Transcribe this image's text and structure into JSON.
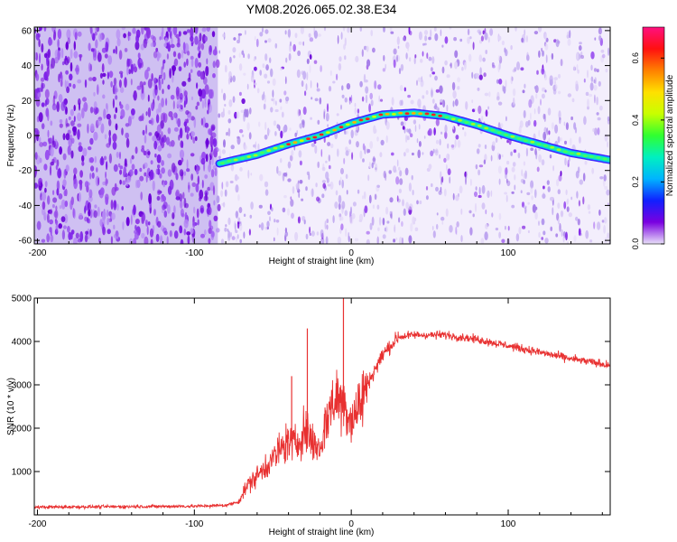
{
  "title": "YM08.2026.065.02.38.E34",
  "chart_data": [
    {
      "type": "heatmap",
      "title": "YM08.2026.065.02.38.E34",
      "xlabel": "Height of straight line (km)",
      "ylabel": "Frequency (Hz)",
      "xlim": [
        -202,
        165
      ],
      "ylim": [
        -62,
        62
      ],
      "x_ticks": [
        -200,
        -100,
        0,
        100
      ],
      "x_tick_labels": [
        "-200",
        "-100",
        "0",
        "100"
      ],
      "y_ticks": [
        -60,
        -40,
        -20,
        0,
        20,
        40,
        60
      ],
      "y_tick_labels": [
        "-60",
        "-40",
        "-20",
        "0",
        "20",
        "40",
        "60"
      ],
      "noise_transition_x": -85,
      "ridge": {
        "x": [
          -84,
          -60,
          -40,
          -20,
          0,
          20,
          40,
          60,
          80,
          100,
          120,
          140,
          165
        ],
        "y": [
          -16,
          -11,
          -5,
          0,
          7,
          12,
          13,
          11,
          6,
          0,
          -5,
          -10,
          -14
        ]
      },
      "colorbar": {
        "label": "Normalized spectral amplitude",
        "range": [
          0,
          0.7
        ],
        "ticks": [
          0.0,
          0.2,
          0.4,
          0.6
        ],
        "tick_labels": [
          "0.0",
          "0.2",
          "0.4",
          "0.6"
        ],
        "colors": [
          "#e8e0f8",
          "#7a00e0",
          "#1020ff",
          "#00b4ff",
          "#00f0c0",
          "#30ff30",
          "#c8ff00",
          "#ffe000",
          "#ff8000",
          "#ff1010",
          "#ff1080"
        ]
      }
    },
    {
      "type": "line",
      "xlabel": "Height of straight line (km)",
      "ylabel": "SNR (10 * v/v)",
      "xlim": [
        -202,
        165
      ],
      "ylim": [
        0,
        5000
      ],
      "x_ticks": [
        -200,
        -100,
        0,
        100
      ],
      "x_tick_labels": [
        "-200",
        "-100",
        "0",
        "100"
      ],
      "y_ticks": [
        1000,
        2000,
        3000,
        4000,
        5000
      ],
      "y_tick_labels": [
        "1000",
        "2000",
        "3000",
        "4000",
        "5000"
      ],
      "series": [
        {
          "name": "SNR",
          "color": "#e83030",
          "x": [
            -202,
            -150,
            -100,
            -80,
            -72,
            -66,
            -60,
            -55,
            -50,
            -45,
            -40,
            -35,
            -30,
            -25,
            -20,
            -15,
            -10,
            -5,
            0,
            5,
            10,
            20,
            30,
            40,
            60,
            80,
            100,
            120,
            140,
            165
          ],
          "y": [
            180,
            190,
            200,
            220,
            300,
            700,
            900,
            1100,
            1300,
            1500,
            1700,
            1600,
            2000,
            1700,
            1500,
            2300,
            2700,
            2600,
            2200,
            2500,
            3000,
            3700,
            4100,
            4150,
            4150,
            4050,
            3900,
            3750,
            3600,
            3450
          ]
        }
      ],
      "spikes": [
        {
          "x": -28,
          "y": 4300
        },
        {
          "x": -5,
          "y": 5000
        },
        {
          "x": -38,
          "y": 3200
        }
      ]
    }
  ]
}
